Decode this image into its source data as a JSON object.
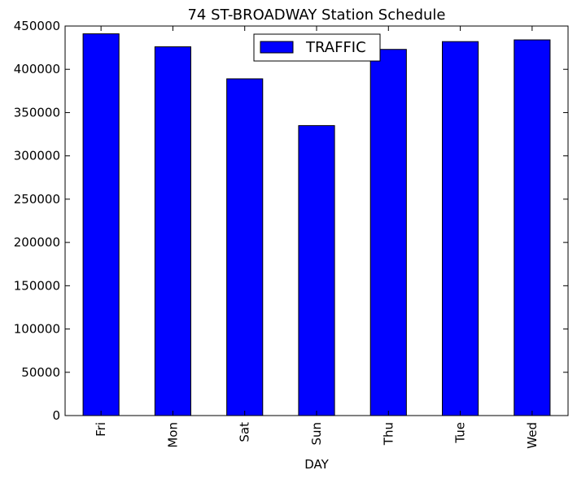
{
  "chart_data": {
    "type": "bar",
    "title": "74 ST-BROADWAY Station Schedule",
    "xlabel": "DAY",
    "ylabel": "",
    "categories": [
      "Fri",
      "Mon",
      "Sat",
      "Sun",
      "Thu",
      "Tue",
      "Wed"
    ],
    "series": [
      {
        "name": "TRAFFIC",
        "color": "#0000ff",
        "values": [
          441000,
          426000,
          389000,
          335000,
          423000,
          432000,
          434000
        ]
      }
    ],
    "ylim": [
      0,
      450000
    ],
    "yticks": [
      0,
      50000,
      100000,
      150000,
      200000,
      250000,
      300000,
      350000,
      400000,
      450000
    ],
    "ytick_labels": [
      "0",
      "50000",
      "100000",
      "150000",
      "200000",
      "250000",
      "300000",
      "350000",
      "400000",
      "450000"
    ],
    "grid": false,
    "legend_position": "top-center"
  }
}
